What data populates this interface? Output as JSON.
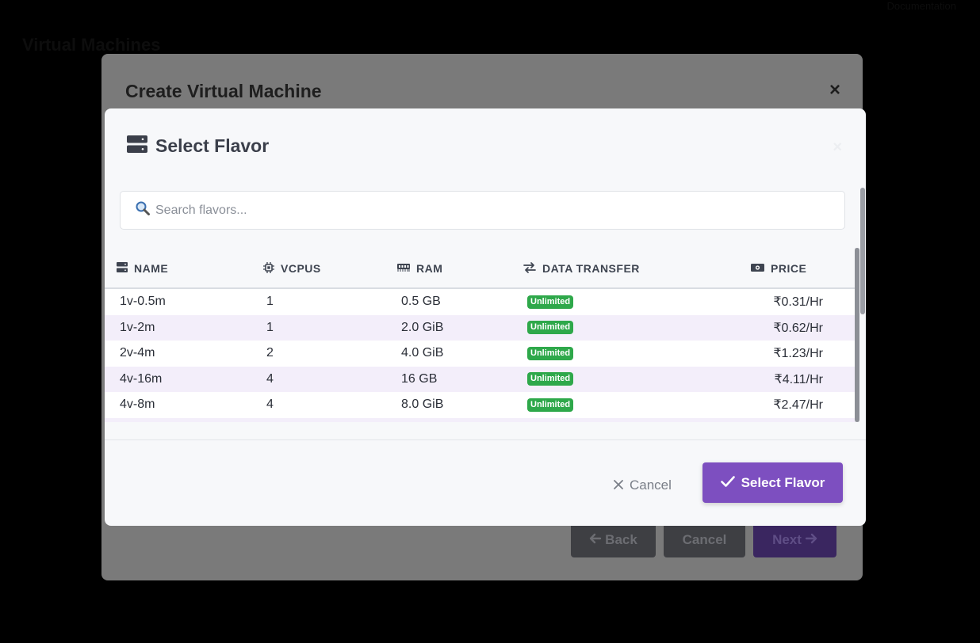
{
  "background": {
    "title": "Virtual Machines",
    "corner_text": "Documentation"
  },
  "outer_modal": {
    "title": "Create Virtual Machine",
    "close": "×",
    "back_label": "Back",
    "cancel_label": "Cancel",
    "next_label": "Next"
  },
  "modal": {
    "title": "Select Flavor",
    "close": "×",
    "search_placeholder": "Search flavors...",
    "columns": {
      "name": "NAME",
      "vcpus": "VCPUS",
      "ram": "RAM",
      "transfer": "DATA TRANSFER",
      "price": "PRICE"
    },
    "rows": [
      {
        "name": "1v-0.5m",
        "vcpus": "1",
        "ram": "0.5 GB",
        "transfer": "Unlimited",
        "price": "₹0.31/Hr"
      },
      {
        "name": "1v-2m",
        "vcpus": "1",
        "ram": "2.0 GiB",
        "transfer": "Unlimited",
        "price": "₹0.62/Hr"
      },
      {
        "name": "2v-4m",
        "vcpus": "2",
        "ram": "4.0 GiB",
        "transfer": "Unlimited",
        "price": "₹1.23/Hr"
      },
      {
        "name": "4v-16m",
        "vcpus": "4",
        "ram": "16 GB",
        "transfer": "Unlimited",
        "price": "₹4.11/Hr"
      },
      {
        "name": "4v-8m",
        "vcpus": "4",
        "ram": "8.0 GiB",
        "transfer": "Unlimited",
        "price": "₹2.47/Hr"
      }
    ],
    "cancel_label": "Cancel",
    "select_label": "Select Flavor"
  },
  "colors": {
    "accent": "#7d4fc0",
    "badge": "#2ea84a",
    "row_highlight": "#f3eefa"
  }
}
